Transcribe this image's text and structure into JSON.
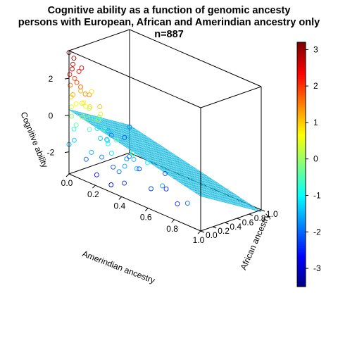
{
  "chart_data": {
    "type": "scatter",
    "title_lines": [
      "Cognitive ability as a function of genomic ancesty",
      "persons with European, African and Amerindian ancestry only",
      "n=887"
    ],
    "xlabel": "Amerindian ancestry",
    "ylabel": "African ancestry",
    "zlabel": "Cognitive ability",
    "x_ticks": [
      "0.0",
      "0.2",
      "0.4",
      "0.6",
      "0.8",
      "1.0"
    ],
    "y_ticks": [
      "0.0",
      "0.2",
      "0.4",
      "0.6",
      "0.8",
      "1.0"
    ],
    "z_ticks": [
      "-2",
      "0",
      "2"
    ],
    "xlim": [
      0,
      1
    ],
    "ylim": [
      0,
      1
    ],
    "zlim": [
      -3.2,
      3.5
    ],
    "colorbar": {
      "ticks": [
        "3",
        "2",
        "1",
        "0",
        "-1",
        "-2",
        "-3"
      ],
      "range": [
        -3.5,
        3.2
      ],
      "palette": "jet"
    },
    "n": 887,
    "points": [
      [
        0.02,
        0.02,
        2.8
      ],
      [
        0.0,
        0.0,
        3.4
      ],
      [
        0.01,
        0.03,
        2.5
      ],
      [
        0.0,
        0.01,
        2.2
      ],
      [
        0.05,
        0.02,
        1.9
      ],
      [
        0.02,
        0.05,
        2.0
      ],
      [
        0.0,
        0.02,
        1.6
      ],
      [
        0.03,
        0.0,
        1.2
      ],
      [
        0.01,
        0.01,
        1.0
      ],
      [
        0.04,
        0.03,
        0.7
      ],
      [
        0.0,
        0.04,
        0.4
      ],
      [
        0.02,
        0.0,
        0.0
      ],
      [
        0.05,
        0.01,
        -0.4
      ],
      [
        0.01,
        0.06,
        -0.8
      ],
      [
        0.03,
        0.02,
        -1.3
      ],
      [
        0.0,
        0.0,
        -1.6
      ],
      [
        0.1,
        0.05,
        1.4
      ],
      [
        0.15,
        0.02,
        0.9
      ],
      [
        0.2,
        0.05,
        0.3
      ],
      [
        0.08,
        0.1,
        0.6
      ],
      [
        0.12,
        0.08,
        -0.5
      ],
      [
        0.25,
        0.1,
        -0.9
      ],
      [
        0.3,
        0.05,
        -1.2
      ],
      [
        0.35,
        0.02,
        -0.3
      ],
      [
        0.4,
        0.05,
        -1.6
      ],
      [
        0.18,
        0.15,
        -1.9
      ],
      [
        0.22,
        0.03,
        1.1
      ],
      [
        0.06,
        0.18,
        -0.2
      ],
      [
        0.28,
        0.12,
        -2.1
      ],
      [
        0.45,
        0.08,
        -0.8
      ],
      [
        0.5,
        0.03,
        -1.4
      ],
      [
        0.6,
        0.05,
        -2.2
      ],
      [
        0.55,
        0.1,
        -1.0
      ],
      [
        0.7,
        0.02,
        -1.7
      ],
      [
        0.8,
        0.05,
        -2.4
      ],
      [
        0.9,
        0.0,
        -2.0
      ],
      [
        0.02,
        0.2,
        0.5
      ],
      [
        0.05,
        0.3,
        -0.4
      ],
      [
        0.03,
        0.4,
        -1.1
      ],
      [
        0.0,
        0.5,
        -0.7
      ],
      [
        0.02,
        0.6,
        -1.5
      ],
      [
        0.0,
        0.7,
        -1.9
      ],
      [
        0.03,
        0.85,
        -2.1
      ],
      [
        0.0,
        1.0,
        -1.8
      ],
      [
        0.1,
        0.3,
        -1.3
      ],
      [
        0.15,
        0.25,
        -0.6
      ],
      [
        0.08,
        0.45,
        -1.6
      ],
      [
        0.2,
        0.2,
        -1.0
      ],
      [
        0.3,
        0.3,
        -1.8
      ],
      [
        0.25,
        0.45,
        -2.0
      ],
      [
        0.4,
        0.2,
        -1.4
      ],
      [
        0.35,
        0.4,
        -2.3
      ],
      [
        0.6,
        0.3,
        -2.5
      ],
      [
        0.5,
        0.5,
        -2.2
      ],
      [
        0.05,
        0.1,
        2.6
      ],
      [
        0.0,
        0.08,
        3.0
      ],
      [
        0.02,
        0.12,
        2.3
      ],
      [
        0.07,
        0.04,
        1.7
      ],
      [
        0.1,
        0.0,
        0.2
      ],
      [
        0.13,
        0.0,
        -2.0
      ],
      [
        0.17,
        0.0,
        -1.5
      ],
      [
        0.21,
        0.0,
        -2.6
      ],
      [
        0.32,
        0.0,
        -2.8
      ],
      [
        0.38,
        0.0,
        -1.9
      ],
      [
        0.42,
        0.0,
        -2.4
      ],
      [
        0.48,
        0.0,
        -0.6
      ],
      [
        0.24,
        0.0,
        0.8
      ],
      [
        0.14,
        0.03,
        1.5
      ],
      [
        0.09,
        0.02,
        0.9
      ],
      [
        0.04,
        0.25,
        0.2
      ],
      [
        0.01,
        0.35,
        0.9
      ],
      [
        0.02,
        0.15,
        1.2
      ]
    ]
  }
}
